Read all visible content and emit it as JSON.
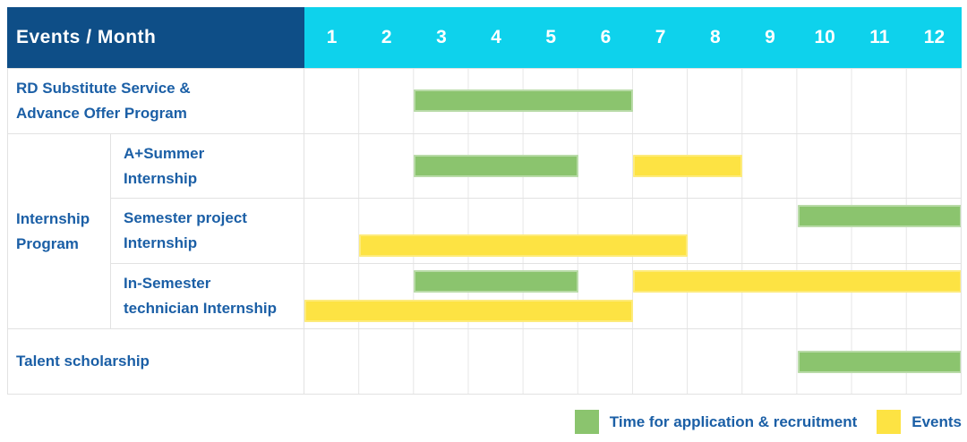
{
  "header": {
    "row_label": "Events / Month"
  },
  "chart_data": {
    "type": "gantt",
    "x_axis_label": "Month",
    "x_range": [
      1,
      12
    ],
    "months": [
      "1",
      "2",
      "3",
      "4",
      "5",
      "6",
      "7",
      "8",
      "9",
      "10",
      "11",
      "12"
    ],
    "series_legend": [
      {
        "key": "application",
        "label": "Time for application & recruitment",
        "color": "#8BC46E"
      },
      {
        "key": "event",
        "label": "Events",
        "color": "#FDE343"
      }
    ],
    "group": {
      "label": "Internship Program",
      "label_lines": [
        "Internship",
        "Program"
      ]
    },
    "tasks": [
      {
        "name": "RD Substitute Service & Advance Offer Program",
        "group": null,
        "label_lines": [
          "RD Substitute Service &",
          "Advance Offer Program"
        ],
        "lanes": [
          [
            {
              "type": "application",
              "start_month": 3,
              "end_month": 6
            }
          ]
        ]
      },
      {
        "name": "A+Summer Internship",
        "group": "Internship Program",
        "label_lines": [
          "A+Summer",
          "Internship"
        ],
        "lanes": [
          [
            {
              "type": "application",
              "start_month": 3,
              "end_month": 5
            },
            {
              "type": "event",
              "start_month": 7,
              "end_month": 8
            }
          ]
        ]
      },
      {
        "name": "Semester project Internship",
        "group": "Internship Program",
        "label_lines": [
          "Semester project",
          "Internship"
        ],
        "lanes": [
          [
            {
              "type": "application",
              "start_month": 10,
              "end_month": 12
            }
          ],
          [
            {
              "type": "event",
              "start_month": 2,
              "end_month": 7
            }
          ]
        ]
      },
      {
        "name": "In-Semester technician Internship",
        "group": "Internship Program",
        "label_lines": [
          "In-Semester",
          "technician Internship"
        ],
        "lanes": [
          [
            {
              "type": "application",
              "start_month": 3,
              "end_month": 5
            },
            {
              "type": "event",
              "start_month": 7,
              "end_month": 12
            }
          ],
          [
            {
              "type": "event",
              "start_month": 1,
              "end_month": 6
            }
          ]
        ]
      },
      {
        "name": "Talent scholarship",
        "group": null,
        "label_lines": [
          "Talent scholarship"
        ],
        "lanes": [
          [
            {
              "type": "application",
              "start_month": 10,
              "end_month": 12
            }
          ]
        ]
      }
    ]
  },
  "colors": {
    "header_bg": "#0E4E87",
    "months_bg": "#0ED2EC",
    "label_text": "#1B5FA6",
    "header_text": "#FFFFFF",
    "bar_green": "#8BC46E",
    "bar_yellow": "#FDE343",
    "grid_line": "#E6E6E6",
    "row_border": "#E2E2E2",
    "page_bg": "#FFFFFF"
  }
}
